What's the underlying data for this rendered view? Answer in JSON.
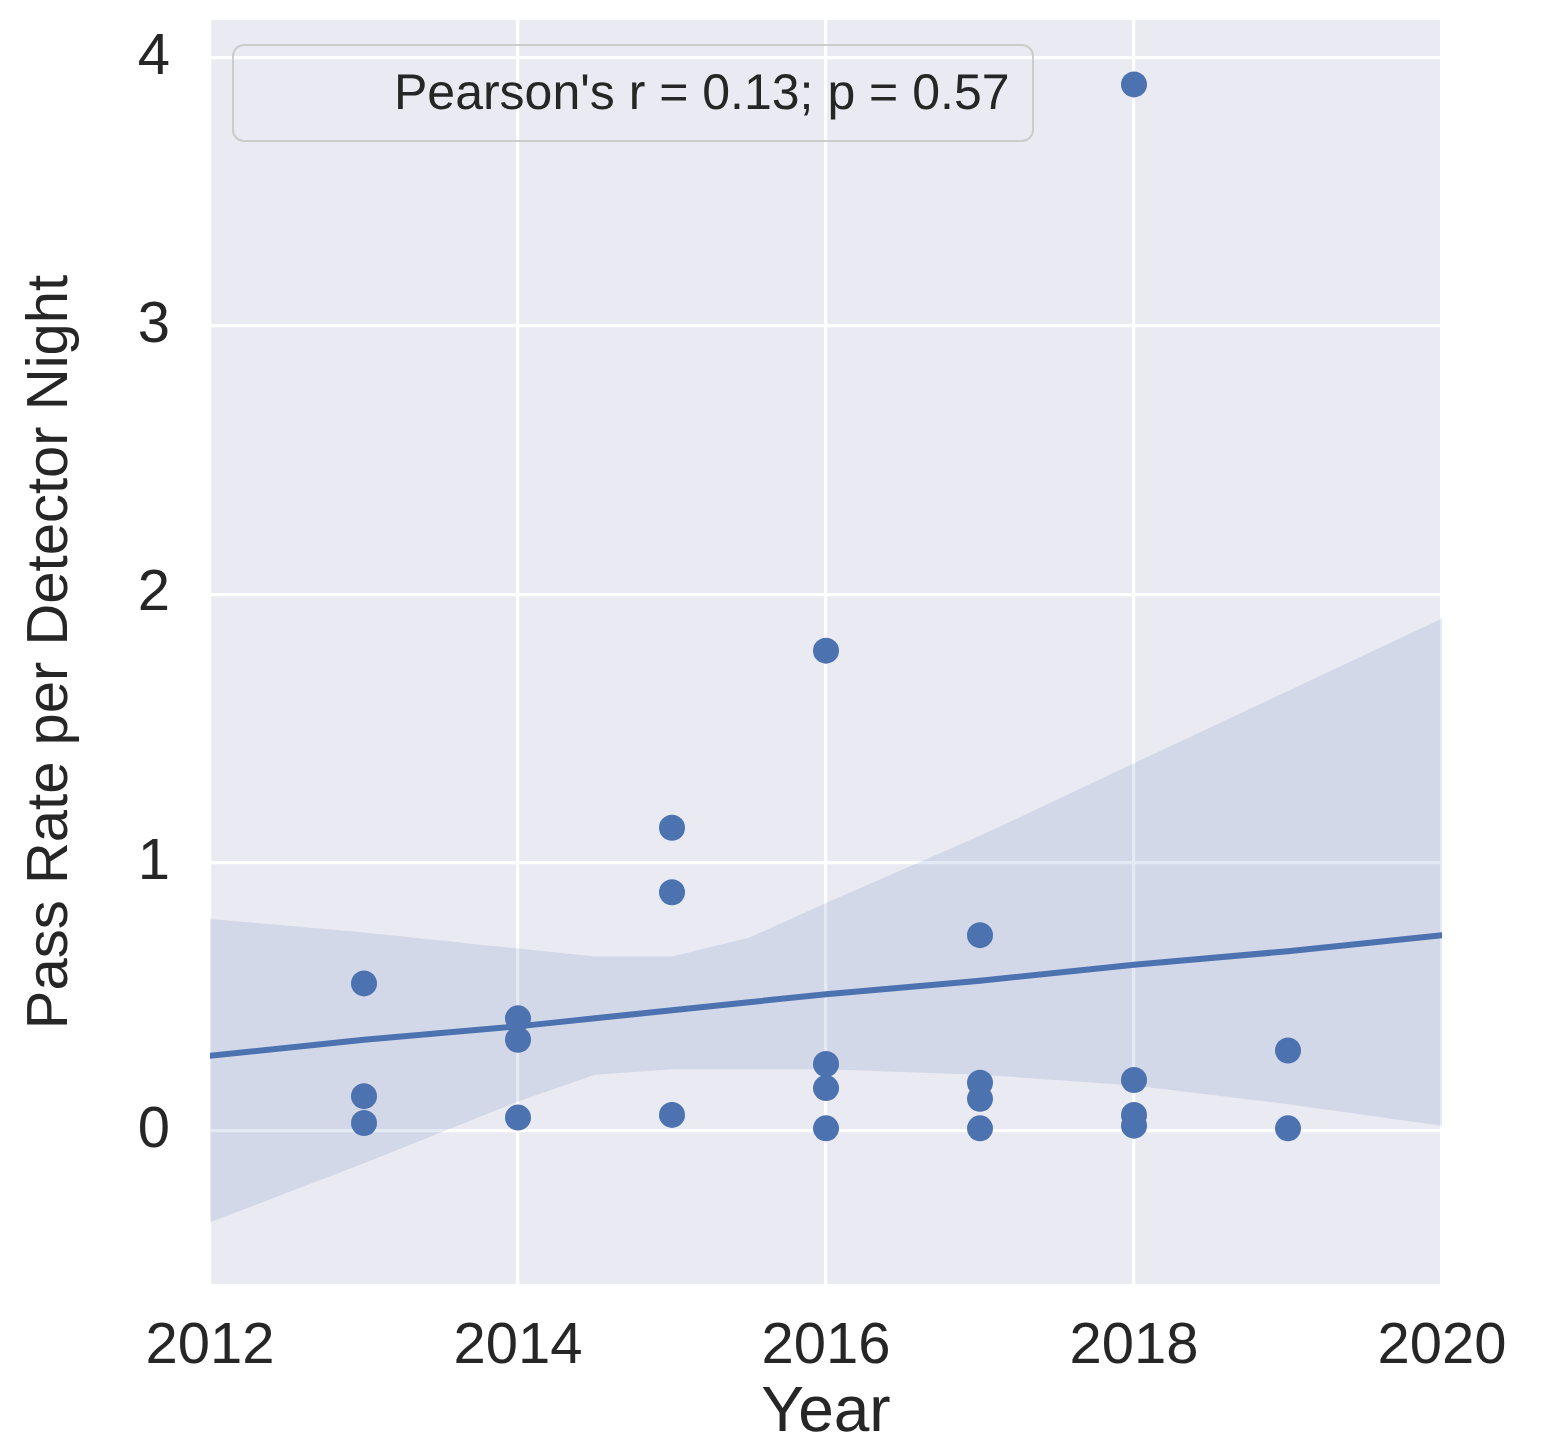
{
  "chart_data": {
    "type": "scatter",
    "xlabel": "Year",
    "ylabel": "Pass Rate per Detector Night",
    "xlim": [
      2012,
      2020
    ],
    "ylim": [
      -0.57,
      4.14
    ],
    "xticks": [
      2012,
      2014,
      2016,
      2018,
      2020
    ],
    "yticks": [
      0,
      1,
      2,
      3,
      4
    ],
    "grid": true,
    "annotations": [
      "Pearson's r = 0.13; p = 0.57"
    ],
    "series": [
      {
        "color": "#4c72b0",
        "marker": "circle",
        "x": [
          2013,
          2013,
          2013,
          2014,
          2014,
          2014,
          2015,
          2015,
          2015,
          2016,
          2016,
          2016,
          2016,
          2017,
          2017,
          2017,
          2017,
          2018,
          2018,
          2018,
          2018,
          2019,
          2019
        ],
        "values": [
          0.55,
          0.13,
          0.03,
          0.42,
          0.34,
          0.05,
          1.13,
          0.89,
          0.06,
          1.79,
          0.25,
          0.16,
          0.01,
          0.73,
          0.18,
          0.12,
          0.01,
          3.9,
          0.19,
          0.06,
          0.02,
          0.3,
          0.01
        ]
      },
      {
        "type": "line",
        "color": "#4c72b0",
        "x": [
          2012,
          2013,
          2014,
          2014.5,
          2015,
          2015.5,
          2016,
          2017,
          2018,
          2019,
          2020
        ],
        "values": [
          0.28,
          0.34,
          0.39,
          0.42,
          0.45,
          0.48,
          0.51,
          0.56,
          0.62,
          0.67,
          0.73
        ],
        "lower": [
          -0.34,
          -0.12,
          0.11,
          0.21,
          0.23,
          0.23,
          0.23,
          0.21,
          0.17,
          0.1,
          0.02
        ],
        "upper": [
          0.79,
          0.74,
          0.68,
          0.65,
          0.65,
          0.72,
          0.85,
          1.1,
          1.37,
          1.64,
          1.91
        ]
      }
    ]
  }
}
